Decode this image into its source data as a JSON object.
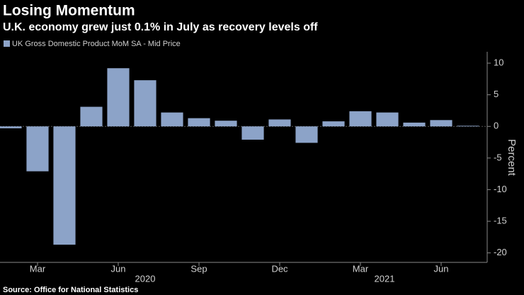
{
  "chart_data": {
    "type": "bar",
    "title": "Losing Momentum",
    "subtitle": "U.K. economy grew just 0.1% in July as recovery levels off",
    "series": [
      {
        "name": "UK Gross Domestic Product MoM SA - Mid Price",
        "color": "#8ca3c8",
        "values": [
          -0.3,
          -7.1,
          -18.7,
          3.1,
          9.2,
          7.3,
          2.2,
          1.3,
          0.9,
          -2.1,
          1.1,
          -2.6,
          0.8,
          2.4,
          2.2,
          0.6,
          1.0,
          0.1
        ]
      }
    ],
    "categories": [
      null,
      "Mar",
      null,
      null,
      "Jun",
      null,
      null,
      "Sep",
      null,
      null,
      "Dec",
      null,
      null,
      "Mar",
      null,
      null,
      "Jun",
      null
    ],
    "year_labels": [
      "2020",
      "2021"
    ],
    "ylim": [
      -21.5,
      11.8
    ],
    "yticks": [
      -20,
      -15,
      -10,
      -5,
      0,
      5,
      10
    ],
    "y_axis_title": "Percent",
    "source": "Source: Office for National Statistics"
  }
}
